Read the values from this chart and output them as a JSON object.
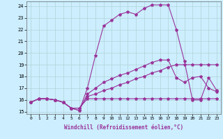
{
  "xlabel": "Windchill (Refroidissement éolien,°C)",
  "bg_color": "#cceeff",
  "line_color": "#993399",
  "hours": [
    0,
    1,
    2,
    3,
    4,
    5,
    6,
    7,
    8,
    9,
    10,
    11,
    12,
    13,
    14,
    15,
    16,
    17,
    18,
    19,
    20,
    21,
    22,
    23
  ],
  "line1": [
    15.8,
    16.1,
    16.1,
    16.0,
    15.8,
    15.3,
    15.3,
    16.1,
    16.1,
    16.1,
    16.1,
    16.1,
    16.1,
    16.1,
    16.1,
    16.1,
    16.1,
    16.1,
    16.1,
    16.1,
    16.1,
    16.1,
    16.1,
    16.1
  ],
  "line2": [
    15.8,
    16.1,
    16.1,
    16.0,
    15.8,
    15.3,
    15.3,
    16.3,
    16.5,
    16.8,
    17.0,
    17.3,
    17.5,
    17.8,
    18.0,
    18.3,
    18.5,
    18.8,
    19.0,
    19.0,
    19.0,
    19.0,
    19.0,
    19.0
  ],
  "line3": [
    15.8,
    16.1,
    16.1,
    16.0,
    15.8,
    15.3,
    15.1,
    16.5,
    17.0,
    17.5,
    17.8,
    18.1,
    18.3,
    18.6,
    18.9,
    19.2,
    19.4,
    19.4,
    17.9,
    17.5,
    17.9,
    18.0,
    17.0,
    16.7
  ],
  "line4": [
    15.8,
    16.1,
    16.1,
    16.0,
    15.8,
    15.3,
    15.1,
    17.0,
    19.8,
    22.3,
    22.8,
    23.3,
    23.5,
    23.3,
    23.8,
    24.1,
    24.1,
    24.1,
    22.0,
    19.3,
    16.0,
    16.0,
    17.9,
    16.8
  ],
  "ylim_min": 14.8,
  "ylim_max": 24.4,
  "yticks": [
    15,
    16,
    17,
    18,
    19,
    20,
    21,
    22,
    23,
    24
  ],
  "ylabel_min": 15,
  "ylabel_max": 24
}
